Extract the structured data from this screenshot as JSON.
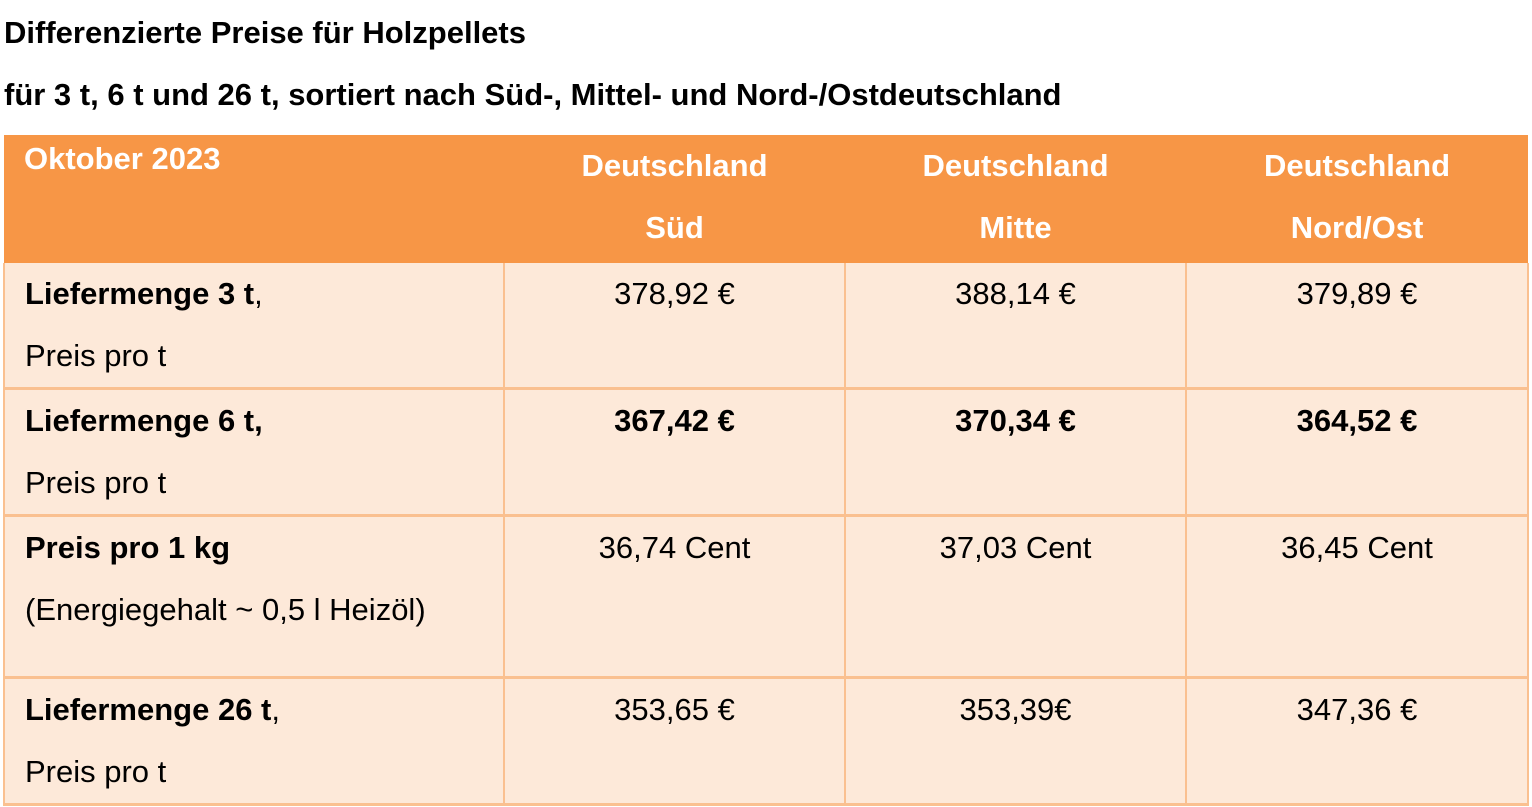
{
  "document": {
    "title": "Differenzierte Preise für Holzpellets",
    "subtitle": "für 3 t, 6 t und 26 t, sortiert nach Süd-, Mittel- und Nord-/Ostdeutschland"
  },
  "table": {
    "header": {
      "period": "Oktober 2023",
      "columns": [
        {
          "line1": "Deutschland",
          "line2": "Süd"
        },
        {
          "line1": "Deutschland",
          "line2": "Mitte"
        },
        {
          "line1": "Deutschland",
          "line2": "Nord/Ost"
        }
      ]
    },
    "rows": [
      {
        "label_bold": "Liefermenge 3 t",
        "label_suffix": ",",
        "label_line2": "Preis pro t",
        "values": [
          "378,92 €",
          "388,14 €",
          "379,89 €"
        ]
      },
      {
        "label_bold": "Liefermenge 6 t,",
        "label_suffix": "",
        "label_line2": "Preis pro t",
        "values": [
          "367,42 €",
          "370,34 €",
          "364,52 €"
        ]
      },
      {
        "label_bold": "Preis pro 1 kg",
        "label_suffix": "",
        "label_line2": "(Energiegehalt ~ 0,5 l Heizöl)",
        "values": [
          "36,74 Cent",
          "37,03 Cent",
          "36,45 Cent"
        ]
      },
      {
        "label_bold": "Liefermenge 26 t",
        "label_suffix": ",",
        "label_line2": "Preis pro t",
        "values": [
          "353,65 €",
          "353,39€",
          "347,36 €"
        ]
      }
    ]
  },
  "colors": {
    "header_bg": "#f79646",
    "header_text": "#ffffff",
    "row_bg": "#fde9d9",
    "border": "#fac090"
  }
}
